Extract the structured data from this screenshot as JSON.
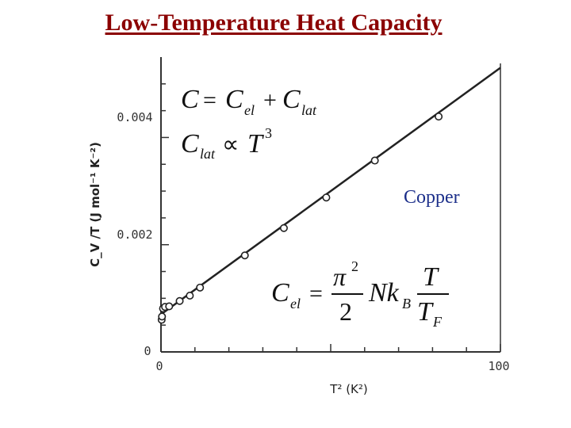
{
  "slide": {
    "title": "Low-Temperature Heat Capacity"
  },
  "annotations": {
    "material": "Copper",
    "eq_total": {
      "lhs": "C",
      "rhs1": "C",
      "sub1": "el",
      "rhs2": "C",
      "sub2": "lat"
    },
    "eq_lattice": {
      "lhs": "C",
      "sub": "lat",
      "rhs": "T",
      "exp": "3"
    },
    "eq_electronic": {
      "lhs": "C",
      "sub": "el",
      "num_pi": "π",
      "pi_exp": "2",
      "den": "2",
      "nk": "Nk",
      "nk_sub": "B",
      "frac_num": "T",
      "frac_den": "T",
      "frac_den_sub": "F"
    }
  },
  "chart_data": {
    "type": "scatter",
    "xlabel": "T² (K²)",
    "ylabel": "C_V /T (J mol⁻¹ K⁻²)",
    "xlim": [
      0,
      100
    ],
    "ylim": [
      0,
      0.0055
    ],
    "x_tick_labels": [
      "0",
      "100"
    ],
    "y_tick_labels": [
      "0",
      "0.002",
      "0.004"
    ],
    "points": {
      "x": [
        0.2,
        0.3,
        0.6,
        1.2,
        2.4,
        5.5,
        8.5,
        11.5,
        24.7,
        36.2,
        48.7,
        63.0,
        81.8
      ],
      "y": [
        0.0006,
        0.00066,
        0.00081,
        0.00084,
        0.00085,
        0.00095,
        0.00105,
        0.0012,
        0.0018,
        0.00231,
        0.00288,
        0.00357,
        0.00439
      ]
    },
    "fit_line": {
      "x": [
        0,
        100
      ],
      "y": [
        0.0007,
        0.0053
      ]
    }
  }
}
